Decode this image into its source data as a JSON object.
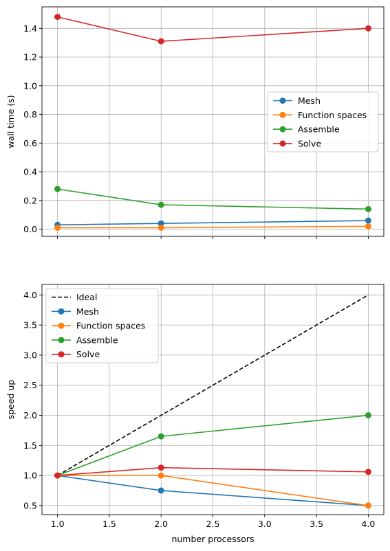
{
  "chart_data": [
    {
      "type": "line",
      "title": "",
      "xlabel": "",
      "ylabel": "wall time (s)",
      "x": [
        1,
        2,
        4
      ],
      "xlim": [
        0.85,
        4.15
      ],
      "ylim": [
        -0.05,
        1.55
      ],
      "xticks": [
        1.0,
        1.5,
        2.0,
        2.5,
        3.0,
        3.5,
        4.0
      ],
      "xtick_labels_visible": false,
      "yticks": [
        0.0,
        0.2,
        0.4,
        0.6,
        0.8,
        1.0,
        1.2,
        1.4
      ],
      "ytick_labels": [
        "0.0",
        "0.2",
        "0.4",
        "0.6",
        "0.8",
        "1.0",
        "1.2",
        "1.4"
      ],
      "grid": true,
      "legend_position": "center-right",
      "series": [
        {
          "name": "Mesh",
          "color": "#1f77b4",
          "marker": "circle",
          "values": [
            0.03,
            0.04,
            0.06
          ]
        },
        {
          "name": "Function spaces",
          "color": "#ff7f0e",
          "marker": "circle",
          "values": [
            0.01,
            0.01,
            0.02
          ]
        },
        {
          "name": "Assemble",
          "color": "#2ca02c",
          "marker": "circle",
          "values": [
            0.28,
            0.17,
            0.14
          ]
        },
        {
          "name": "Solve",
          "color": "#d62728",
          "marker": "circle",
          "values": [
            1.48,
            1.31,
            1.4
          ]
        }
      ]
    },
    {
      "type": "line",
      "title": "",
      "xlabel": "number processors",
      "ylabel": "speed up",
      "x": [
        1,
        2,
        4
      ],
      "xlim": [
        0.85,
        4.15
      ],
      "ylim": [
        0.35,
        4.175
      ],
      "xticks": [
        1.0,
        1.5,
        2.0,
        2.5,
        3.0,
        3.5,
        4.0
      ],
      "xtick_labels": [
        "1.0",
        "1.5",
        "2.0",
        "2.5",
        "3.0",
        "3.5",
        "4.0"
      ],
      "xtick_labels_visible": true,
      "yticks": [
        0.5,
        1.0,
        1.5,
        2.0,
        2.5,
        3.0,
        3.5,
        4.0
      ],
      "ytick_labels": [
        "0.5",
        "1.0",
        "1.5",
        "2.0",
        "2.5",
        "3.0",
        "3.5",
        "4.0"
      ],
      "grid": true,
      "legend_position": "upper-left",
      "series": [
        {
          "name": "Ideal",
          "color": "#000000",
          "marker": "none",
          "dashed": true,
          "values": [
            1,
            2,
            4
          ]
        },
        {
          "name": "Mesh",
          "color": "#1f77b4",
          "marker": "circle",
          "values": [
            1.0,
            0.75,
            0.5
          ]
        },
        {
          "name": "Function spaces",
          "color": "#ff7f0e",
          "marker": "circle",
          "values": [
            1.0,
            1.0,
            0.5
          ]
        },
        {
          "name": "Assemble",
          "color": "#2ca02c",
          "marker": "circle",
          "values": [
            1.0,
            1.65,
            2.0
          ]
        },
        {
          "name": "Solve",
          "color": "#d62728",
          "marker": "circle",
          "values": [
            1.0,
            1.13,
            1.06
          ]
        }
      ]
    }
  ]
}
